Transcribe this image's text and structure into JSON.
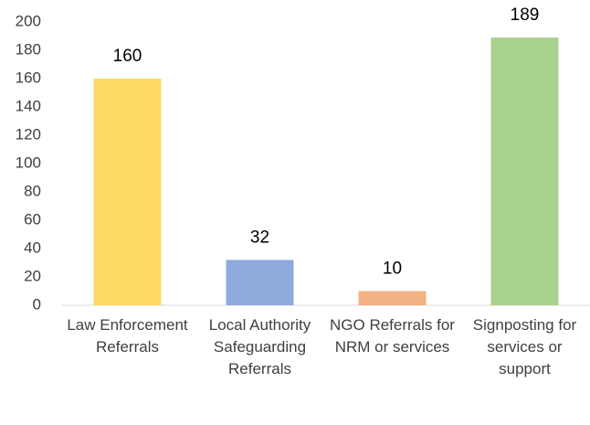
{
  "chart_data": {
    "type": "bar",
    "categories": [
      "Law Enforcement Referrals",
      "Local Authority Safeguarding Referrals",
      "NGO Referrals for NRM or services",
      "Signposting for services or support"
    ],
    "values": [
      160,
      32,
      10,
      189
    ],
    "colors": [
      "#ffd966",
      "#8faadc",
      "#f4b183",
      "#a9d18e"
    ],
    "ylim": [
      0,
      200
    ],
    "yticks": [
      0,
      20,
      40,
      60,
      80,
      100,
      120,
      140,
      160,
      180,
      200
    ],
    "grid": false
  }
}
